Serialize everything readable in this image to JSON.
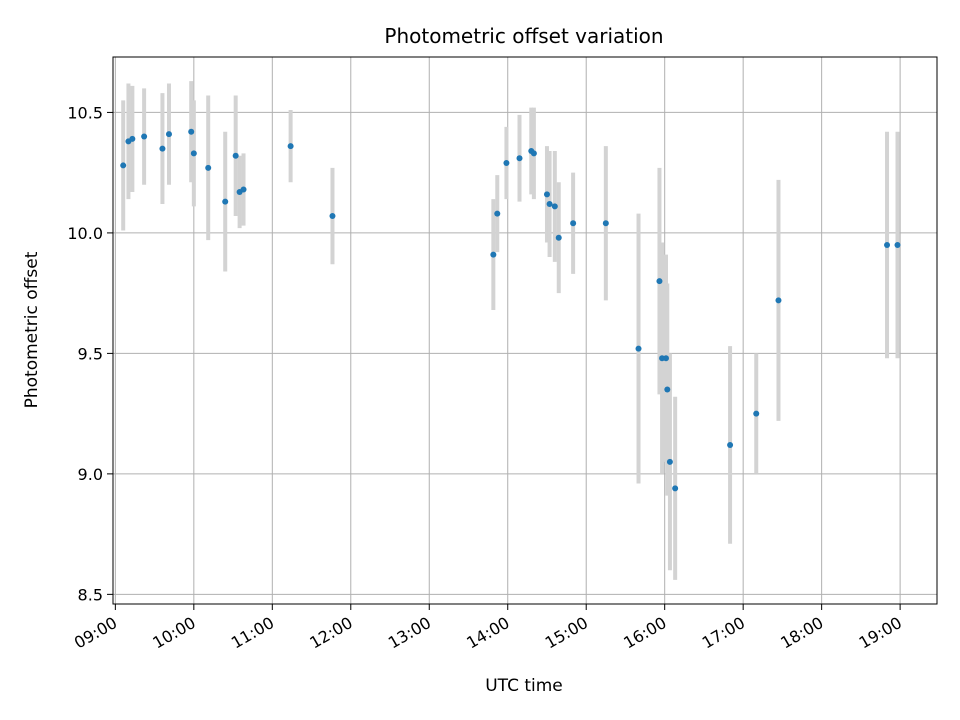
{
  "chart_data": {
    "type": "scatter",
    "title": "Photometric offset variation",
    "xlabel": "UTC time",
    "ylabel": "Photometric offset",
    "x_unit": "hours UTC",
    "xlim": [
      8.97,
      19.47
    ],
    "ylim": [
      8.46,
      10.73
    ],
    "xticks": [
      {
        "value": 9,
        "label": "09:00"
      },
      {
        "value": 10,
        "label": "10:00"
      },
      {
        "value": 11,
        "label": "11:00"
      },
      {
        "value": 12,
        "label": "12:00"
      },
      {
        "value": 13,
        "label": "13:00"
      },
      {
        "value": 14,
        "label": "14:00"
      },
      {
        "value": 15,
        "label": "15:00"
      },
      {
        "value": 16,
        "label": "16:00"
      },
      {
        "value": 17,
        "label": "17:00"
      },
      {
        "value": 18,
        "label": "18:00"
      },
      {
        "value": 19,
        "label": "19:00"
      }
    ],
    "yticks": [
      {
        "value": 8.5,
        "label": "8.5"
      },
      {
        "value": 9.0,
        "label": "9.0"
      },
      {
        "value": 9.5,
        "label": "9.5"
      },
      {
        "value": 10.0,
        "label": "10.0"
      },
      {
        "value": 10.5,
        "label": "10.5"
      }
    ],
    "grid": true,
    "colors": {
      "point": "#1f77b4",
      "errorbar": "#d3d3d3",
      "grid": "#b0b0b0"
    },
    "series": [
      {
        "points": [
          {
            "x": "09:06",
            "y": 10.28,
            "err": 0.27
          },
          {
            "x": "09:10",
            "y": 10.38,
            "err": 0.24
          },
          {
            "x": "09:13",
            "y": 10.39,
            "err": 0.22
          },
          {
            "x": "09:22",
            "y": 10.4,
            "err": 0.2
          },
          {
            "x": "09:36",
            "y": 10.35,
            "err": 0.23
          },
          {
            "x": "09:41",
            "y": 10.41,
            "err": 0.21
          },
          {
            "x": "09:58",
            "y": 10.42,
            "err": 0.21
          },
          {
            "x": "10:00",
            "y": 10.33,
            "err": 0.22
          },
          {
            "x": "10:11",
            "y": 10.27,
            "err": 0.3
          },
          {
            "x": "10:24",
            "y": 10.13,
            "err": 0.29
          },
          {
            "x": "10:32",
            "y": 10.32,
            "err": 0.25
          },
          {
            "x": "10:35",
            "y": 10.17,
            "err": 0.15
          },
          {
            "x": "10:38",
            "y": 10.18,
            "err": 0.15
          },
          {
            "x": "11:14",
            "y": 10.36,
            "err": 0.15
          },
          {
            "x": "11:46",
            "y": 10.07,
            "err": 0.2
          },
          {
            "x": "13:49",
            "y": 9.91,
            "err": 0.23
          },
          {
            "x": "13:52",
            "y": 10.08,
            "err": 0.16
          },
          {
            "x": "13:59",
            "y": 10.29,
            "err": 0.15
          },
          {
            "x": "14:09",
            "y": 10.31,
            "err": 0.18
          },
          {
            "x": "14:18",
            "y": 10.34,
            "err": 0.18
          },
          {
            "x": "14:20",
            "y": 10.33,
            "err": 0.19
          },
          {
            "x": "14:30",
            "y": 10.16,
            "err": 0.2
          },
          {
            "x": "14:32",
            "y": 10.12,
            "err": 0.22
          },
          {
            "x": "14:36",
            "y": 10.11,
            "err": 0.23
          },
          {
            "x": "14:39",
            "y": 9.98,
            "err": 0.23
          },
          {
            "x": "14:50",
            "y": 10.04,
            "err": 0.21
          },
          {
            "x": "15:15",
            "y": 10.04,
            "err": 0.32
          },
          {
            "x": "15:40",
            "y": 9.52,
            "err": 0.56
          },
          {
            "x": "15:56",
            "y": 9.8,
            "err": 0.47
          },
          {
            "x": "15:58",
            "y": 9.48,
            "err": 0.48
          },
          {
            "x": "16:01",
            "y": 9.48,
            "err": 0.43
          },
          {
            "x": "16:02",
            "y": 9.35,
            "err": 0.44
          },
          {
            "x": "16:04",
            "y": 9.05,
            "err": 0.45
          },
          {
            "x": "16:08",
            "y": 8.94,
            "err": 0.38
          },
          {
            "x": "16:50",
            "y": 9.12,
            "err": 0.41
          },
          {
            "x": "17:10",
            "y": 9.25,
            "err": 0.25
          },
          {
            "x": "17:27",
            "y": 9.72,
            "err": 0.5
          },
          {
            "x": "18:50",
            "y": 9.95,
            "err": 0.47
          },
          {
            "x": "18:58",
            "y": 9.95,
            "err": 0.47
          }
        ]
      }
    ]
  }
}
